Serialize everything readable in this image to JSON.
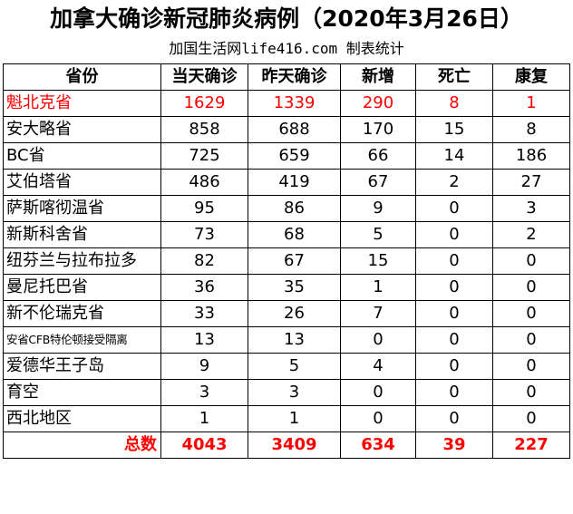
{
  "title": "加拿大确诊新冠肺炎病例（2020年3月26日）",
  "subtitle": "加国生活网life416.com 制表统计",
  "colors": {
    "highlight": "#ff0000",
    "total": "#ff0000"
  },
  "headers": [
    "省份",
    "当天确诊",
    "昨天确诊",
    "新增",
    "死亡",
    "康复"
  ],
  "rows": [
    {
      "province": "魁北克省",
      "today": "1629",
      "yesterday": "1339",
      "new": "290",
      "deaths": "8",
      "recovered": "1"
    },
    {
      "province": "安大略省",
      "today": "858",
      "yesterday": "688",
      "new": "170",
      "deaths": "15",
      "recovered": "8"
    },
    {
      "province": "BC省",
      "today": "725",
      "yesterday": "659",
      "new": "66",
      "deaths": "14",
      "recovered": "186"
    },
    {
      "province": "艾伯塔省",
      "today": "486",
      "yesterday": "419",
      "new": "67",
      "deaths": "2",
      "recovered": "27"
    },
    {
      "province": "萨斯喀彻温省",
      "today": "95",
      "yesterday": "86",
      "new": "9",
      "deaths": "0",
      "recovered": "3"
    },
    {
      "province": "新斯科舍省",
      "today": "73",
      "yesterday": "68",
      "new": "5",
      "deaths": "0",
      "recovered": "2"
    },
    {
      "province": "纽芬兰与拉布拉多",
      "today": "82",
      "yesterday": "67",
      "new": "15",
      "deaths": "0",
      "recovered": "0"
    },
    {
      "province": "曼尼托巴省",
      "today": "36",
      "yesterday": "35",
      "new": "1",
      "deaths": "0",
      "recovered": "0"
    },
    {
      "province": "新不伦瑞克省",
      "today": "33",
      "yesterday": "26",
      "new": "7",
      "deaths": "0",
      "recovered": "0"
    },
    {
      "province": "安省CFB特伦顿接受隔离",
      "today": "13",
      "yesterday": "13",
      "new": "0",
      "deaths": "0",
      "recovered": "0"
    },
    {
      "province": "爱德华王子岛",
      "today": "9",
      "yesterday": "5",
      "new": "4",
      "deaths": "0",
      "recovered": "0"
    },
    {
      "province": "育空",
      "today": "3",
      "yesterday": "3",
      "new": "0",
      "deaths": "0",
      "recovered": "0"
    },
    {
      "province": "西北地区",
      "today": "1",
      "yesterday": "1",
      "new": "0",
      "deaths": "0",
      "recovered": "0"
    }
  ],
  "total": {
    "label": "总数",
    "today": "4043",
    "yesterday": "3409",
    "new": "634",
    "deaths": "39",
    "recovered": "227"
  }
}
